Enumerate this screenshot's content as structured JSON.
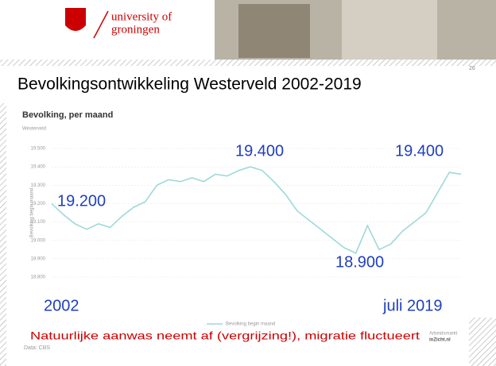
{
  "header": {
    "logo_line1": "university of",
    "logo_line2": "groningen",
    "page_number": "26",
    "title": "Bevolkingsontwikkeling Westerveld 2002-2019"
  },
  "annotations": [
    "19.200",
    "19.400",
    "19.400",
    "18.900",
    "2002",
    "juli 2019"
  ],
  "footer": {
    "note": "Natuurlijke aanwas neemt af (vergrijzing!), migratie fluctueert",
    "brand_line1": "Arbeidsmarkt",
    "brand_line2": "inZicht.nl"
  },
  "chart_data": {
    "type": "line",
    "title": "Bevolking, per maand",
    "subtitle": "Westerveld",
    "y_label": "Bevolking begin maand",
    "source": "Data: CBS",
    "x": [
      2002,
      2002.5,
      2003,
      2003.5,
      2004,
      2004.5,
      2005,
      2005.5,
      2006,
      2006.5,
      2007,
      2007.5,
      2008,
      2008.5,
      2009,
      2009.5,
      2010,
      2010.5,
      2011,
      2011.5,
      2012,
      2012.5,
      2013,
      2013.5,
      2014,
      2014.5,
      2015,
      2015.5,
      2016,
      2016.5,
      2017,
      2017.5,
      2018,
      2018.5,
      2019,
      2019.5
    ],
    "series": [
      {
        "name": "Bevolking begin maand",
        "color": "#9ed9d8",
        "values": [
          19200,
          19140,
          19090,
          19060,
          19090,
          19070,
          19130,
          19180,
          19210,
          19300,
          19330,
          19320,
          19340,
          19320,
          19360,
          19350,
          19380,
          19400,
          19380,
          19320,
          19250,
          19160,
          19110,
          19060,
          19010,
          18960,
          18930,
          19080,
          18950,
          18980,
          19050,
          19100,
          19150,
          19260,
          19370,
          19360
        ]
      }
    ],
    "xlim": [
      2002,
      2019.5
    ],
    "ylim": [
      18800,
      19500
    ],
    "yticks": [
      {
        "value": 18800,
        "label": "18.800"
      },
      {
        "value": 18900,
        "label": "18.900"
      },
      {
        "value": 19000,
        "label": "19.000"
      },
      {
        "value": 19100,
        "label": "19.100"
      },
      {
        "value": 19200,
        "label": "19.200"
      },
      {
        "value": 19300,
        "label": "19.300"
      },
      {
        "value": 19400,
        "label": "19.400"
      },
      {
        "value": 19500,
        "label": "19.500"
      }
    ],
    "grid": true
  }
}
